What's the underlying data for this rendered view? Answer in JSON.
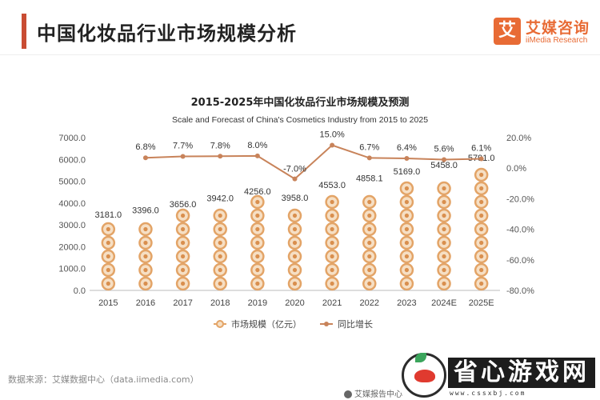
{
  "page": {
    "title": "中国化妆品行业市场规模分析",
    "accent_color": "#c94c33"
  },
  "brand": {
    "mark": "艾",
    "name": "艾媒咨询",
    "sub": "iiMedia Research",
    "color": "#e86b35"
  },
  "chart_data": {
    "type": "bar",
    "title": "2015-2025年中国化妆品行业市场规模及预测",
    "subtitle": "Scale and Forecast of China's Cosmetics Industry from 2015 to 2025",
    "categories": [
      "2015",
      "2016",
      "2017",
      "2018",
      "2019",
      "2020",
      "2021",
      "2022",
      "2023",
      "2024E",
      "2025E"
    ],
    "series": [
      {
        "name": "市场规模（亿元）",
        "type": "bar",
        "axis": "left",
        "color": "#e3a467",
        "values": [
          3181.0,
          3396.0,
          3656.0,
          3942.0,
          4256.0,
          3958.0,
          4553.0,
          4858.1,
          5169.0,
          5458.0,
          5791.0
        ],
        "labels": [
          "3181.0",
          "3396.0",
          "3656.0",
          "3942.0",
          "4256.0",
          "3958.0",
          "4553.0",
          "4858.1",
          "5169.0",
          "5458.0",
          "5791.0"
        ]
      },
      {
        "name": "同比增长",
        "type": "line",
        "axis": "right",
        "color": "#c8835a",
        "values": [
          null,
          6.8,
          7.7,
          7.8,
          8.0,
          -7.0,
          15.0,
          6.7,
          6.4,
          5.6,
          6.1
        ],
        "labels": [
          "",
          "6.8%",
          "7.7%",
          "7.8%",
          "8.0%",
          "-7.0%",
          "15.0%",
          "6.7%",
          "6.4%",
          "5.6%",
          "6.1%"
        ]
      }
    ],
    "ylim": [
      0,
      7000
    ],
    "y_ticks": [
      "7000.0",
      "6000.0",
      "5000.0",
      "4000.0",
      "3000.0",
      "2000.0",
      "1000.0",
      "0.0"
    ],
    "y2lim": [
      -80,
      20
    ],
    "y2_ticks": [
      "20.0%",
      "0.0%",
      "-20.0%",
      "-40.0%",
      "-60.0%",
      "-80.0%"
    ],
    "grid": false,
    "legend_position": "bottom"
  },
  "footer": {
    "source": "数据来源：艾媒数据中心（data.iimedia.com）",
    "brand": "艾媒报告中心"
  },
  "watermark": {
    "text": "省心游戏网",
    "url": "www.cssxbj.com"
  }
}
